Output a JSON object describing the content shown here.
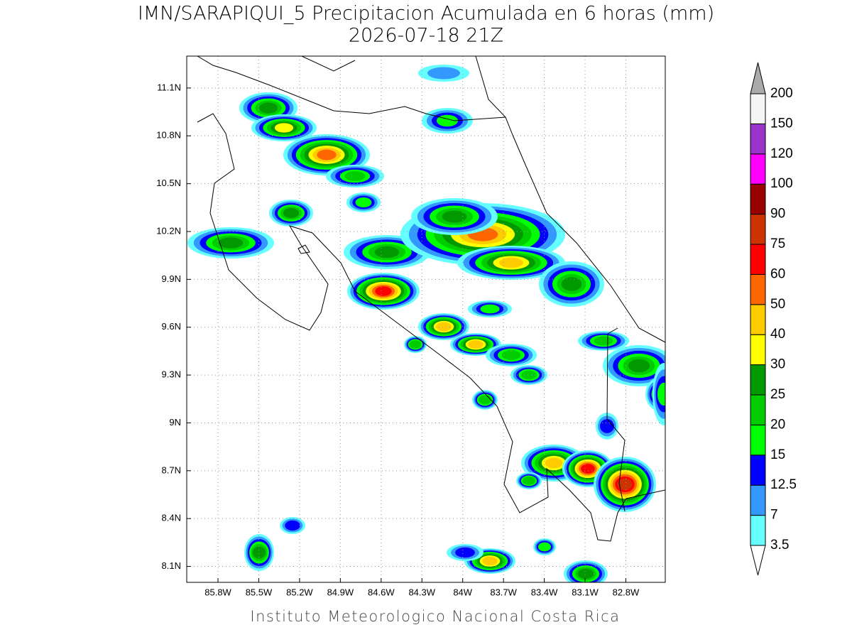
{
  "header": {
    "title": "IMN/SARAPIQUI_5 Precipitacion Acumulada en 6 horas (mm)",
    "subtitle": "2026-07-18 21Z"
  },
  "map": {
    "lat_range": [
      8.0,
      11.3
    ],
    "lon_range": [
      -86.03,
      -82.51
    ],
    "lat_ticks": [
      {
        "value": 11.1,
        "label": "11.1N"
      },
      {
        "value": 10.8,
        "label": "10.8N"
      },
      {
        "value": 10.5,
        "label": "10.5N"
      },
      {
        "value": 10.2,
        "label": "10.2N"
      },
      {
        "value": 9.9,
        "label": "9.9N"
      },
      {
        "value": 9.6,
        "label": "9.6N"
      },
      {
        "value": 9.3,
        "label": "9.3N"
      },
      {
        "value": 9.0,
        "label": "9N"
      },
      {
        "value": 8.7,
        "label": "8.7N"
      },
      {
        "value": 8.4,
        "label": "8.4N"
      },
      {
        "value": 8.1,
        "label": "8.1N"
      }
    ],
    "lon_ticks": [
      {
        "value": -85.8,
        "label": "85.8W"
      },
      {
        "value": -85.5,
        "label": "85.5W"
      },
      {
        "value": -85.2,
        "label": "85.2W"
      },
      {
        "value": -84.9,
        "label": "84.9W"
      },
      {
        "value": -84.6,
        "label": "84.6W"
      },
      {
        "value": -84.3,
        "label": "84.3W"
      },
      {
        "value": -84.0,
        "label": "84W"
      },
      {
        "value": -83.7,
        "label": "83.7W"
      },
      {
        "value": -83.4,
        "label": "83.4W"
      },
      {
        "value": -83.1,
        "label": "83.1W"
      },
      {
        "value": -82.8,
        "label": "82.8W"
      }
    ],
    "grid": true
  },
  "colorbar": {
    "levels": [
      3.5,
      7,
      12.5,
      15,
      20,
      25,
      30,
      40,
      50,
      60,
      75,
      90,
      100,
      120,
      150,
      200
    ],
    "colors": [
      "#66ffff",
      "#3399ff",
      "#0000ff",
      "#00ff00",
      "#00cc00",
      "#009900",
      "#ffff00",
      "#ffcc00",
      "#ff6600",
      "#ff0000",
      "#cc3300",
      "#990000",
      "#ff00ff",
      "#9933cc",
      "#f5f5f5"
    ],
    "under_color": "#ffffff",
    "over_color": "#aaaaaa"
  },
  "footer": "Instituto Meteorologico Nacional Costa Rica"
}
